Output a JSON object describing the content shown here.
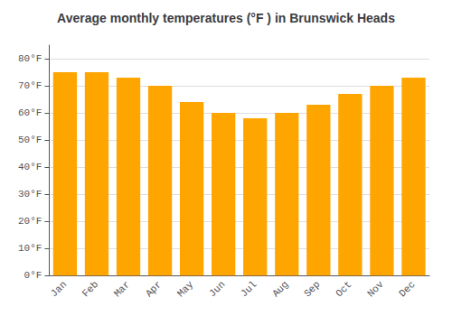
{
  "chart_data": {
    "type": "bar",
    "title": "Average monthly temperatures (°F ) in Brunswick Heads",
    "categories": [
      "Jan",
      "Feb",
      "Mar",
      "Apr",
      "May",
      "Jun",
      "Jul",
      "Aug",
      "Sep",
      "Oct",
      "Nov",
      "Dec"
    ],
    "values": [
      75,
      75,
      73,
      70,
      64,
      60,
      58,
      60,
      63,
      67,
      70,
      73
    ],
    "color": "#FFA500",
    "ylim": [
      0,
      85
    ],
    "yticks": [
      {
        "value": 0,
        "label": "0°F"
      },
      {
        "value": 10,
        "label": "10°F"
      },
      {
        "value": 20,
        "label": "20°F"
      },
      {
        "value": 30,
        "label": "30°F"
      },
      {
        "value": 40,
        "label": "40°F"
      },
      {
        "value": 50,
        "label": "50°F"
      },
      {
        "value": 60,
        "label": "60°F"
      },
      {
        "value": 70,
        "label": "70°F"
      },
      {
        "value": 80,
        "label": "80°F"
      }
    ],
    "grid": true
  }
}
